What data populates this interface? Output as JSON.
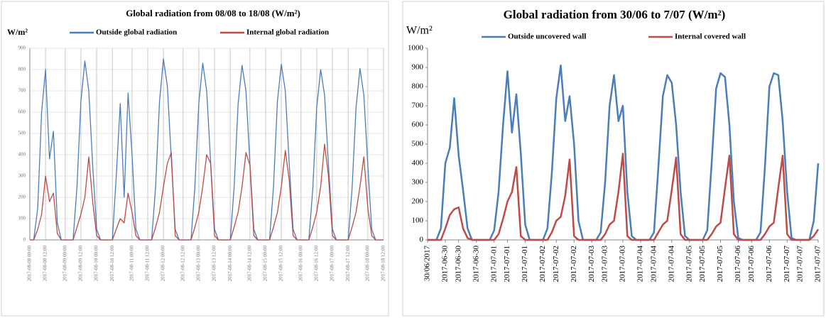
{
  "chart_data": [
    {
      "type": "line",
      "title": "Global radiation from 08/08 to 18/08 (W/m²)",
      "y_label": "W/m²",
      "categories": [
        "2017-08-08 00:00",
        null,
        null,
        null,
        "2017-08-08 12:00",
        null,
        null,
        null,
        null,
        "2017-08-09 00:00",
        null,
        null,
        null,
        "2017-08-09 12:00",
        null,
        null,
        null,
        "2017-08-10 00:00",
        null,
        null,
        null,
        "2017-08-10 12:00",
        null,
        null,
        null,
        null,
        "2017-08-11 00:00",
        null,
        null,
        null,
        "2017-08-11 12:00",
        null,
        null,
        null,
        "2017-08-12 00:00",
        null,
        null,
        null,
        null,
        "2017-08-12 12:00",
        null,
        null,
        null,
        "2017-08-13 00:00",
        null,
        null,
        null,
        "2017-08-13 12:00",
        null,
        null,
        null,
        "2017-08-14 00:00",
        null,
        null,
        null,
        null,
        "2017-08-14 12:00",
        null,
        null,
        null,
        "2017-08-15 00:00",
        null,
        null,
        null,
        "2017-08-15 12:00",
        null,
        null,
        null,
        null,
        "2017-08-16 00:00",
        null,
        null,
        null,
        "2017-08-16 12:00",
        null,
        null,
        null,
        "2017-08-17 00:00",
        null,
        null,
        null,
        "2017-08-17 12:00",
        null,
        null,
        null,
        null,
        "2017-08-18 00:00",
        null,
        null,
        null,
        "2017-08-18 12:00"
      ],
      "series": [
        {
          "name": "Outside global radiation",
          "color": "#4a7ebb",
          "values": [
            0,
            0,
            150,
            600,
            800,
            380,
            510,
            80,
            0,
            0,
            0,
            0,
            250,
            650,
            840,
            700,
            350,
            50,
            0,
            0,
            0,
            0,
            300,
            640,
            200,
            690,
            400,
            50,
            0,
            0,
            0,
            0,
            250,
            650,
            850,
            720,
            380,
            50,
            0,
            0,
            0,
            0,
            250,
            640,
            830,
            700,
            370,
            50,
            0,
            0,
            0,
            0,
            250,
            640,
            820,
            700,
            360,
            50,
            0,
            0,
            0,
            0,
            250,
            650,
            825,
            700,
            360,
            50,
            0,
            0,
            0,
            0,
            240,
            620,
            800,
            680,
            350,
            50,
            0,
            0,
            0,
            0,
            240,
            620,
            805,
            680,
            350,
            50,
            0,
            0,
            0
          ]
        },
        {
          "name": "Internal global radiation",
          "color": "#be4b48",
          "values": [
            0,
            0,
            50,
            120,
            300,
            180,
            220,
            30,
            0,
            0,
            0,
            0,
            60,
            120,
            200,
            390,
            180,
            20,
            0,
            0,
            0,
            0,
            50,
            100,
            80,
            220,
            130,
            20,
            0,
            0,
            0,
            0,
            60,
            130,
            250,
            360,
            410,
            20,
            0,
            0,
            0,
            0,
            60,
            130,
            250,
            400,
            360,
            20,
            0,
            0,
            0,
            0,
            60,
            130,
            250,
            410,
            350,
            20,
            0,
            0,
            0,
            0,
            60,
            130,
            250,
            420,
            280,
            20,
            0,
            0,
            0,
            0,
            60,
            130,
            250,
            450,
            300,
            20,
            0,
            0,
            0,
            0,
            60,
            130,
            250,
            390,
            150,
            20,
            0,
            0,
            0
          ]
        }
      ],
      "ylim": [
        0,
        900
      ],
      "yticks": [
        0,
        100,
        200,
        300,
        400,
        500,
        600,
        700,
        800,
        900
      ],
      "grid": true
    },
    {
      "type": "line",
      "title": "Global radiation from 30/06 to 7/07 (W/m²)",
      "y_label": "W/m²",
      "categories": [
        "30/06/2017",
        null,
        null,
        null,
        "2017-06-30",
        null,
        null,
        "2017-06-30",
        null,
        null,
        null,
        "2017-06-30",
        null,
        null,
        null,
        "2017-07-01",
        null,
        null,
        "2017-07-01",
        null,
        null,
        null,
        "2017-07-01",
        null,
        null,
        null,
        "2017-07-02",
        null,
        null,
        "2017-07-02",
        null,
        null,
        null,
        "2017-07-02",
        null,
        null,
        null,
        "2017-07-03",
        null,
        null,
        "2017-07-03",
        null,
        null,
        null,
        "2017-07-03",
        null,
        null,
        null,
        "2017-07-04",
        null,
        null,
        "2017-07-04",
        null,
        null,
        null,
        "2017-07-04",
        null,
        null,
        null,
        "2017-07-05",
        null,
        null,
        "2017-07-05",
        null,
        null,
        null,
        "2017-07-05",
        null,
        null,
        null,
        "2017-07-06",
        null,
        null,
        "2017-07-06",
        null,
        null,
        null,
        "2017-07-06",
        null,
        null,
        null,
        "2017-07-07",
        null,
        null,
        "2017-07-07",
        null,
        null,
        null,
        "2017-07-07"
      ],
      "series": [
        {
          "name": "Outside uncovered wall",
          "color": "#4a7ebb",
          "values": [
            0,
            0,
            0,
            60,
            400,
            480,
            740,
            440,
            260,
            60,
            0,
            0,
            0,
            0,
            0,
            50,
            250,
            600,
            880,
            560,
            760,
            450,
            80,
            0,
            0,
            0,
            0,
            60,
            350,
            740,
            910,
            620,
            750,
            500,
            100,
            0,
            0,
            0,
            0,
            40,
            300,
            700,
            860,
            620,
            700,
            250,
            20,
            0,
            0,
            0,
            0,
            40,
            380,
            750,
            860,
            820,
            600,
            250,
            20,
            0,
            0,
            0,
            0,
            50,
            400,
            790,
            870,
            850,
            600,
            200,
            10,
            0,
            0,
            0,
            0,
            40,
            380,
            800,
            870,
            860,
            620,
            250,
            10,
            0,
            0,
            0,
            0,
            100,
            400
          ]
        },
        {
          "name": "Internal covered wall",
          "color": "#be4b48",
          "values": [
            0,
            0,
            0,
            0,
            60,
            130,
            160,
            170,
            60,
            10,
            0,
            0,
            0,
            0,
            0,
            0,
            30,
            110,
            200,
            250,
            380,
            20,
            0,
            0,
            0,
            0,
            0,
            0,
            40,
            100,
            120,
            230,
            420,
            20,
            0,
            0,
            0,
            0,
            0,
            0,
            30,
            80,
            100,
            250,
            450,
            20,
            0,
            0,
            0,
            0,
            0,
            0,
            40,
            80,
            100,
            260,
            430,
            30,
            0,
            0,
            0,
            0,
            0,
            0,
            30,
            70,
            90,
            270,
            440,
            30,
            0,
            0,
            0,
            0,
            0,
            0,
            30,
            70,
            90,
            270,
            440,
            30,
            0,
            0,
            0,
            0,
            0,
            20,
            55
          ]
        }
      ],
      "ylim": [
        0,
        1000
      ],
      "yticks": [
        0,
        100,
        200,
        300,
        400,
        500,
        600,
        700,
        800,
        900,
        1000
      ],
      "grid": false
    }
  ]
}
